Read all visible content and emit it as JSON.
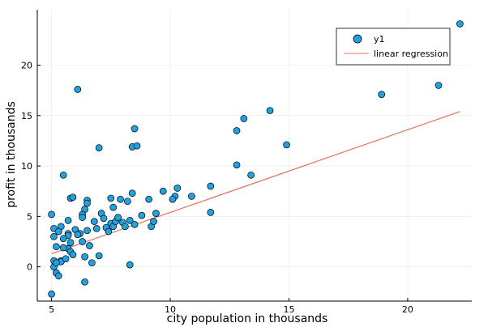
{
  "colors": {
    "background": "#ffffff",
    "marker_fill": "#1fa2e2",
    "marker_stroke": "#000000",
    "regression_line": "#e4735a",
    "grid": "#ececec",
    "axis": "#000000"
  },
  "chart_data": {
    "type": "scatter",
    "title": "",
    "xlabel": "city population in thousands",
    "ylabel": "profit in thousands",
    "xlim": [
      4.4,
      22.7
    ],
    "ylim": [
      -3.4,
      25.5
    ],
    "xticks": [
      5,
      10,
      15,
      20
    ],
    "yticks": [
      0,
      5,
      10,
      15,
      20
    ],
    "grid": true,
    "legend_position": "top-right",
    "series": [
      {
        "name": "y1",
        "kind": "scatter",
        "points": [
          [
            6.1,
            17.6
          ],
          [
            5.5,
            9.1
          ],
          [
            8.5,
            13.7
          ],
          [
            7.0,
            11.8
          ],
          [
            5.8,
            6.8
          ],
          [
            8.4,
            11.9
          ],
          [
            7.5,
            4.3
          ],
          [
            8.6,
            12.0
          ],
          [
            6.5,
            6.6
          ],
          [
            5.1,
            3.8
          ],
          [
            5.7,
            3.3
          ],
          [
            14.2,
            15.5
          ],
          [
            5.7,
            3.1
          ],
          [
            10.2,
            7.0
          ],
          [
            5.7,
            1.8
          ],
          [
            5.4,
            0.6
          ],
          [
            6.0,
            3.7
          ],
          [
            5.1,
            3.0
          ],
          [
            6.4,
            5.7
          ],
          [
            5.4,
            4.0
          ],
          [
            6.4,
            1.0
          ],
          [
            5.1,
            0.6
          ],
          [
            5.0,
            5.2
          ],
          [
            5.1,
            0.0
          ],
          [
            5.2,
            -0.6
          ],
          [
            5.3,
            -0.9
          ],
          [
            5.4,
            0.5
          ],
          [
            5.6,
            0.8
          ],
          [
            6.4,
            -1.5
          ],
          [
            5.0,
            -2.7
          ],
          [
            5.2,
            2.0
          ],
          [
            5.5,
            1.9
          ],
          [
            5.8,
            1.5
          ],
          [
            5.9,
            1.2
          ],
          [
            6.2,
            3.3
          ],
          [
            6.3,
            2.5
          ],
          [
            6.5,
            3.6
          ],
          [
            6.6,
            2.1
          ],
          [
            5.7,
            4.6
          ],
          [
            6.3,
            5.2
          ],
          [
            6.7,
            0.4
          ],
          [
            6.8,
            4.5
          ],
          [
            6.9,
            3.8
          ],
          [
            7.1,
            5.3
          ],
          [
            7.2,
            4.8
          ],
          [
            7.3,
            3.9
          ],
          [
            7.4,
            3.5
          ],
          [
            7.5,
            6.8
          ],
          [
            7.6,
            4.0
          ],
          [
            7.7,
            4.5
          ],
          [
            7.8,
            4.9
          ],
          [
            7.9,
            6.7
          ],
          [
            8.0,
            4.4
          ],
          [
            8.1,
            4.0
          ],
          [
            8.2,
            6.5
          ],
          [
            8.3,
            4.6
          ],
          [
            8.4,
            7.3
          ],
          [
            8.5,
            4.2
          ],
          [
            8.8,
            5.1
          ],
          [
            9.1,
            6.7
          ],
          [
            9.2,
            4.0
          ],
          [
            9.3,
            4.5
          ],
          [
            9.4,
            5.3
          ],
          [
            9.7,
            7.5
          ],
          [
            10.1,
            6.7
          ],
          [
            10.3,
            7.8
          ],
          [
            10.9,
            7.0
          ],
          [
            11.7,
            8.0
          ],
          [
            11.7,
            5.4
          ],
          [
            12.8,
            13.5
          ],
          [
            13.1,
            14.7
          ],
          [
            12.8,
            10.1
          ],
          [
            13.4,
            9.1
          ],
          [
            14.9,
            12.1
          ],
          [
            18.9,
            17.1
          ],
          [
            21.3,
            18.0
          ],
          [
            22.2,
            24.1
          ],
          [
            7.0,
            1.1
          ],
          [
            8.3,
            0.2
          ],
          [
            5.2,
            0.4
          ],
          [
            5.9,
            6.9
          ],
          [
            6.5,
            6.3
          ],
          [
            7.6,
            5.9
          ],
          [
            5.5,
            2.8
          ],
          [
            6.1,
            3.2
          ],
          [
            6.3,
            4.9
          ],
          [
            5.3,
            3.5
          ],
          [
            5.8,
            2.4
          ]
        ]
      },
      {
        "name": "linear regression",
        "kind": "line",
        "points": [
          [
            5.0,
            1.3
          ],
          [
            22.2,
            15.4
          ]
        ]
      }
    ]
  }
}
